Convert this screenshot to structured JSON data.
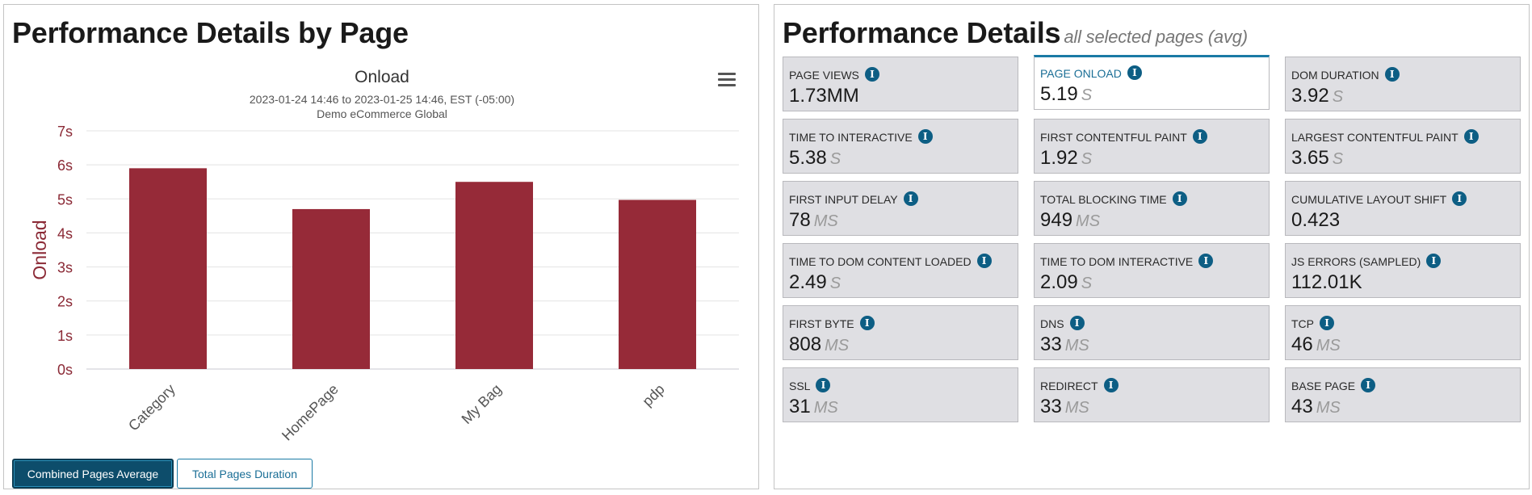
{
  "left_panel": {
    "title": "Performance Details by Page",
    "chart_menu_icon": "hamburger-menu-icon",
    "buttons": {
      "combined": "Combined Pages Average",
      "total": "Total Pages Duration"
    }
  },
  "chart_data": {
    "type": "bar",
    "title": "Onload",
    "subtitle_line1": "2023-01-24 14:46 to 2023-01-25 14:46, EST (-05:00)",
    "subtitle_line2": "Demo eCommerce Global",
    "ylabel": "Onload",
    "ylim": [
      0,
      7
    ],
    "yticks": [
      "0s",
      "1s",
      "2s",
      "3s",
      "4s",
      "5s",
      "6s",
      "7s"
    ],
    "categories": [
      "Category",
      "HomePage",
      "My Bag",
      "pdp"
    ],
    "values": [
      5.9,
      4.7,
      5.5,
      4.97
    ],
    "bar_color": "#962a38",
    "axis_label_color": "#8b2a36",
    "grid": true
  },
  "right_panel": {
    "title": "Performance Details",
    "subtitle": "all selected pages (avg)",
    "info_icon_glyph": "i",
    "tiles": [
      {
        "label": "PAGE VIEWS",
        "value": "1.73MM",
        "unit": ""
      },
      {
        "label": "PAGE ONLOAD",
        "value": "5.19",
        "unit": "S",
        "active": true
      },
      {
        "label": "DOM DURATION",
        "value": "3.92",
        "unit": "S"
      },
      {
        "label": "TIME TO INTERACTIVE",
        "value": "5.38",
        "unit": "S"
      },
      {
        "label": "FIRST CONTENTFUL PAINT",
        "value": "1.92",
        "unit": "S"
      },
      {
        "label": "LARGEST CONTENTFUL PAINT",
        "value": "3.65",
        "unit": "S"
      },
      {
        "label": "FIRST INPUT DELAY",
        "value": "78",
        "unit": "MS"
      },
      {
        "label": "TOTAL BLOCKING TIME",
        "value": "949",
        "unit": "MS"
      },
      {
        "label": "CUMULATIVE LAYOUT SHIFT",
        "value": "0.423",
        "unit": ""
      },
      {
        "label": "TIME TO DOM CONTENT LOADED",
        "value": "2.49",
        "unit": "S"
      },
      {
        "label": "TIME TO DOM INTERACTIVE",
        "value": "2.09",
        "unit": "S"
      },
      {
        "label": "JS ERRORS (SAMPLED)",
        "value": "112.01K",
        "unit": ""
      },
      {
        "label": "FIRST BYTE",
        "value": "808",
        "unit": "MS"
      },
      {
        "label": "DNS",
        "value": "33",
        "unit": "MS"
      },
      {
        "label": "TCP",
        "value": "46",
        "unit": "MS"
      },
      {
        "label": "SSL",
        "value": "31",
        "unit": "MS"
      },
      {
        "label": "REDIRECT",
        "value": "33",
        "unit": "MS"
      },
      {
        "label": "BASE PAGE",
        "value": "43",
        "unit": "MS"
      }
    ]
  }
}
